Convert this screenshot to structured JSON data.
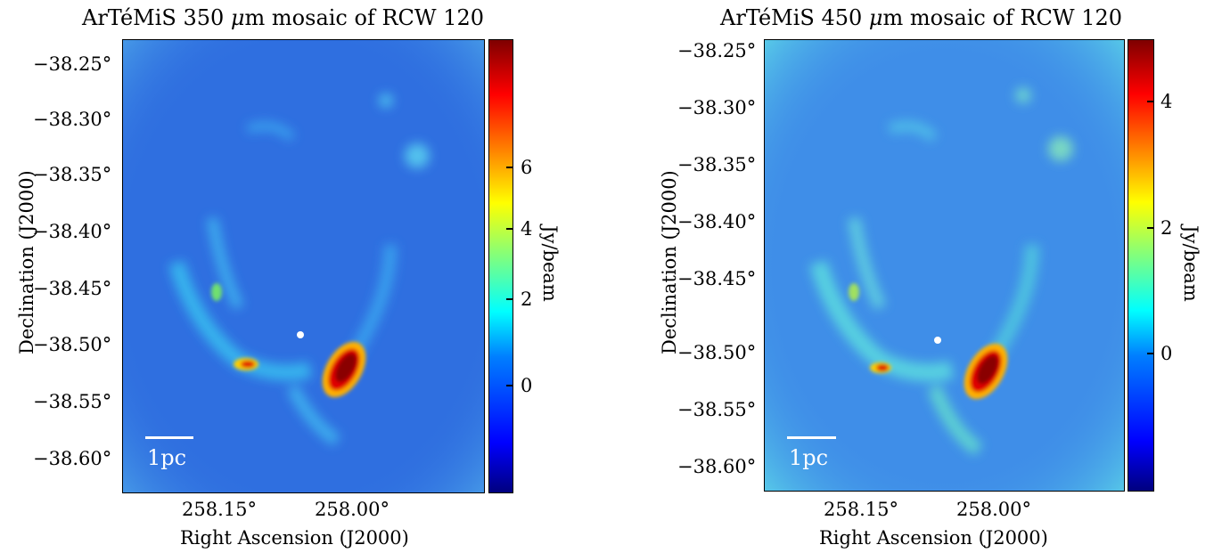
{
  "panels": [
    {
      "title_pre": "ArTéMiS 350 ",
      "title_mu": "μ",
      "title_post": "m mosaic of RCW 120",
      "ylabel": "Declination (J2000)",
      "xlabel": "Right Ascension (J2000)",
      "yticks": [
        "−38.25°",
        "−38.30°",
        "−38.35°",
        "−38.40°",
        "−38.45°",
        "−38.50°",
        "−38.55°",
        "−38.60°"
      ],
      "xticks": [
        "258.15°",
        "258.00°"
      ],
      "cbar_ticks": [
        "6",
        "4",
        "2",
        "0"
      ],
      "cbar_label": "Jy/beam",
      "scale_label": "1pc"
    },
    {
      "title_pre": "ArTéMiS 450 ",
      "title_mu": "μ",
      "title_post": "m mosaic of RCW 120",
      "ylabel": "Declination (J2000)",
      "xlabel": "Right Ascension (J2000)",
      "yticks": [
        "−38.25°",
        "−38.30°",
        "−38.35°",
        "−38.40°",
        "−38.45°",
        "−38.50°",
        "−38.55°",
        "−38.60°"
      ],
      "xticks": [
        "258.15°",
        "258.00°"
      ],
      "cbar_ticks": [
        "4",
        "2",
        "0"
      ],
      "cbar_label": "Jy/beam",
      "scale_label": "1pc"
    }
  ],
  "colors": {
    "background_map": "#2f6fe0",
    "colormap": "jet",
    "marker": "#ffffff"
  }
}
